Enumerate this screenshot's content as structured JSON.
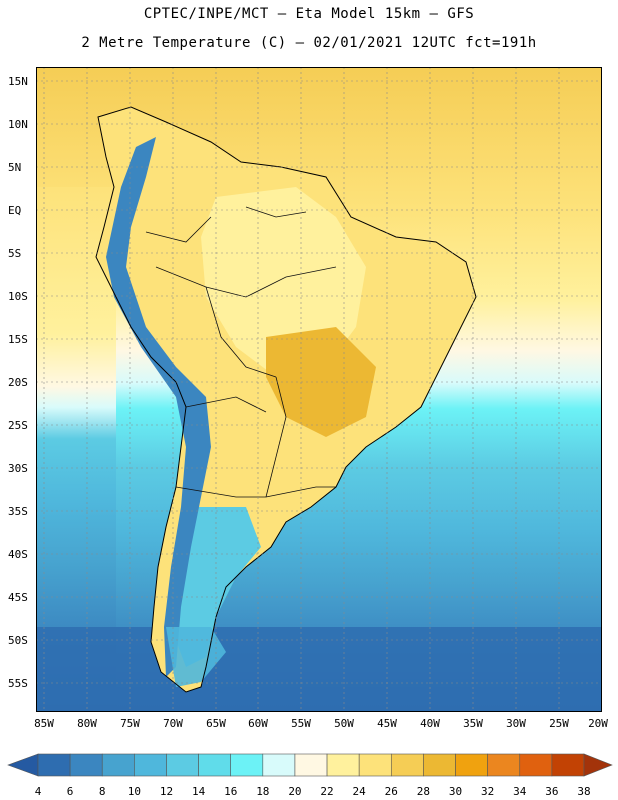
{
  "header": {
    "line1": "CPTEC/INPE/MCT –  Eta Model 15km – GFS",
    "line2": "2 Metre Temperature (C) – 02/01/2021 12UTC fct=191h"
  },
  "map": {
    "variable": "2 Metre Temperature (C)",
    "lat_labels": [
      "15N",
      "10N",
      "5N",
      "EQ",
      "5S",
      "10S",
      "15S",
      "20S",
      "25S",
      "30S",
      "35S",
      "40S",
      "45S",
      "50S",
      "55S"
    ],
    "lon_labels": [
      "85W",
      "80W",
      "75W",
      "70W",
      "65W",
      "60W",
      "55W",
      "50W",
      "45W",
      "40W",
      "35W",
      "30W",
      "25W",
      "20W"
    ],
    "lat_range": [
      16,
      -59
    ],
    "lon_range": [
      -86,
      -20
    ]
  },
  "colorbar": {
    "ticks": [
      "4",
      "6",
      "8",
      "10",
      "12",
      "14",
      "16",
      "18",
      "20",
      "22",
      "24",
      "26",
      "28",
      "30",
      "32",
      "34",
      "36",
      "38"
    ],
    "colors": [
      "#2e6db0",
      "#3b86c0",
      "#47a3cf",
      "#4fb7dc",
      "#5ccbe3",
      "#60dcea",
      "#6cf2f6",
      "#d8fbfb",
      "#fff8e3",
      "#fff19d",
      "#fde27a",
      "#f5cd55",
      "#ecb833",
      "#f0a20f",
      "#eb861f",
      "#e0610f",
      "#c24204"
    ],
    "under_color": "#255aa2",
    "over_color": "#a3330a"
  }
}
